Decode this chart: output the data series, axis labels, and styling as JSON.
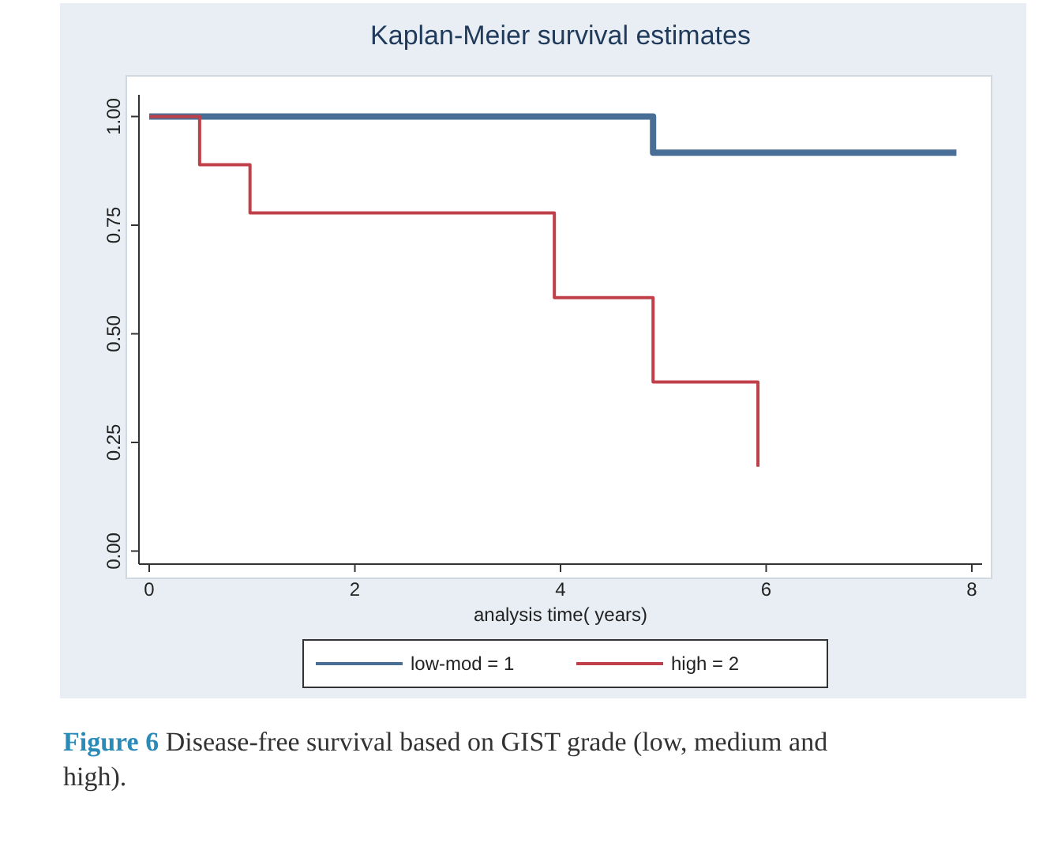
{
  "chart_data": {
    "type": "step",
    "title": "Kaplan-Meier survival estimates",
    "xlabel": "analysis time( years)",
    "xlim": [
      -0.1,
      8.1
    ],
    "xticks": [
      0,
      2,
      4,
      6,
      8
    ],
    "ylim": [
      -0.03,
      1.05
    ],
    "yticks": [
      {
        "value": 0,
        "label": "0.00"
      },
      {
        "value": 0.25,
        "label": "0.25"
      },
      {
        "value": 0.5,
        "label": "0.50"
      },
      {
        "value": 0.75,
        "label": "0.75"
      },
      {
        "value": 1,
        "label": "1.00"
      }
    ],
    "legend": "bottom",
    "grid": false,
    "series": [
      {
        "name": "low-mod = 1",
        "color": "#4a6f96",
        "x": [
          0,
          4.9,
          7.85
        ],
        "values": [
          1,
          0.917,
          0.917
        ]
      },
      {
        "name": "high = 2",
        "color": "#c0404a",
        "x": [
          0,
          0.49,
          0.98,
          3.94,
          4.9,
          5.92
        ],
        "values": [
          1,
          0.889,
          0.778,
          0.583,
          0.389,
          0.194
        ]
      }
    ],
    "annotations": [
      "Figure 6 Disease-free survival based on GIST grade (low, medium and high)."
    ]
  }
}
